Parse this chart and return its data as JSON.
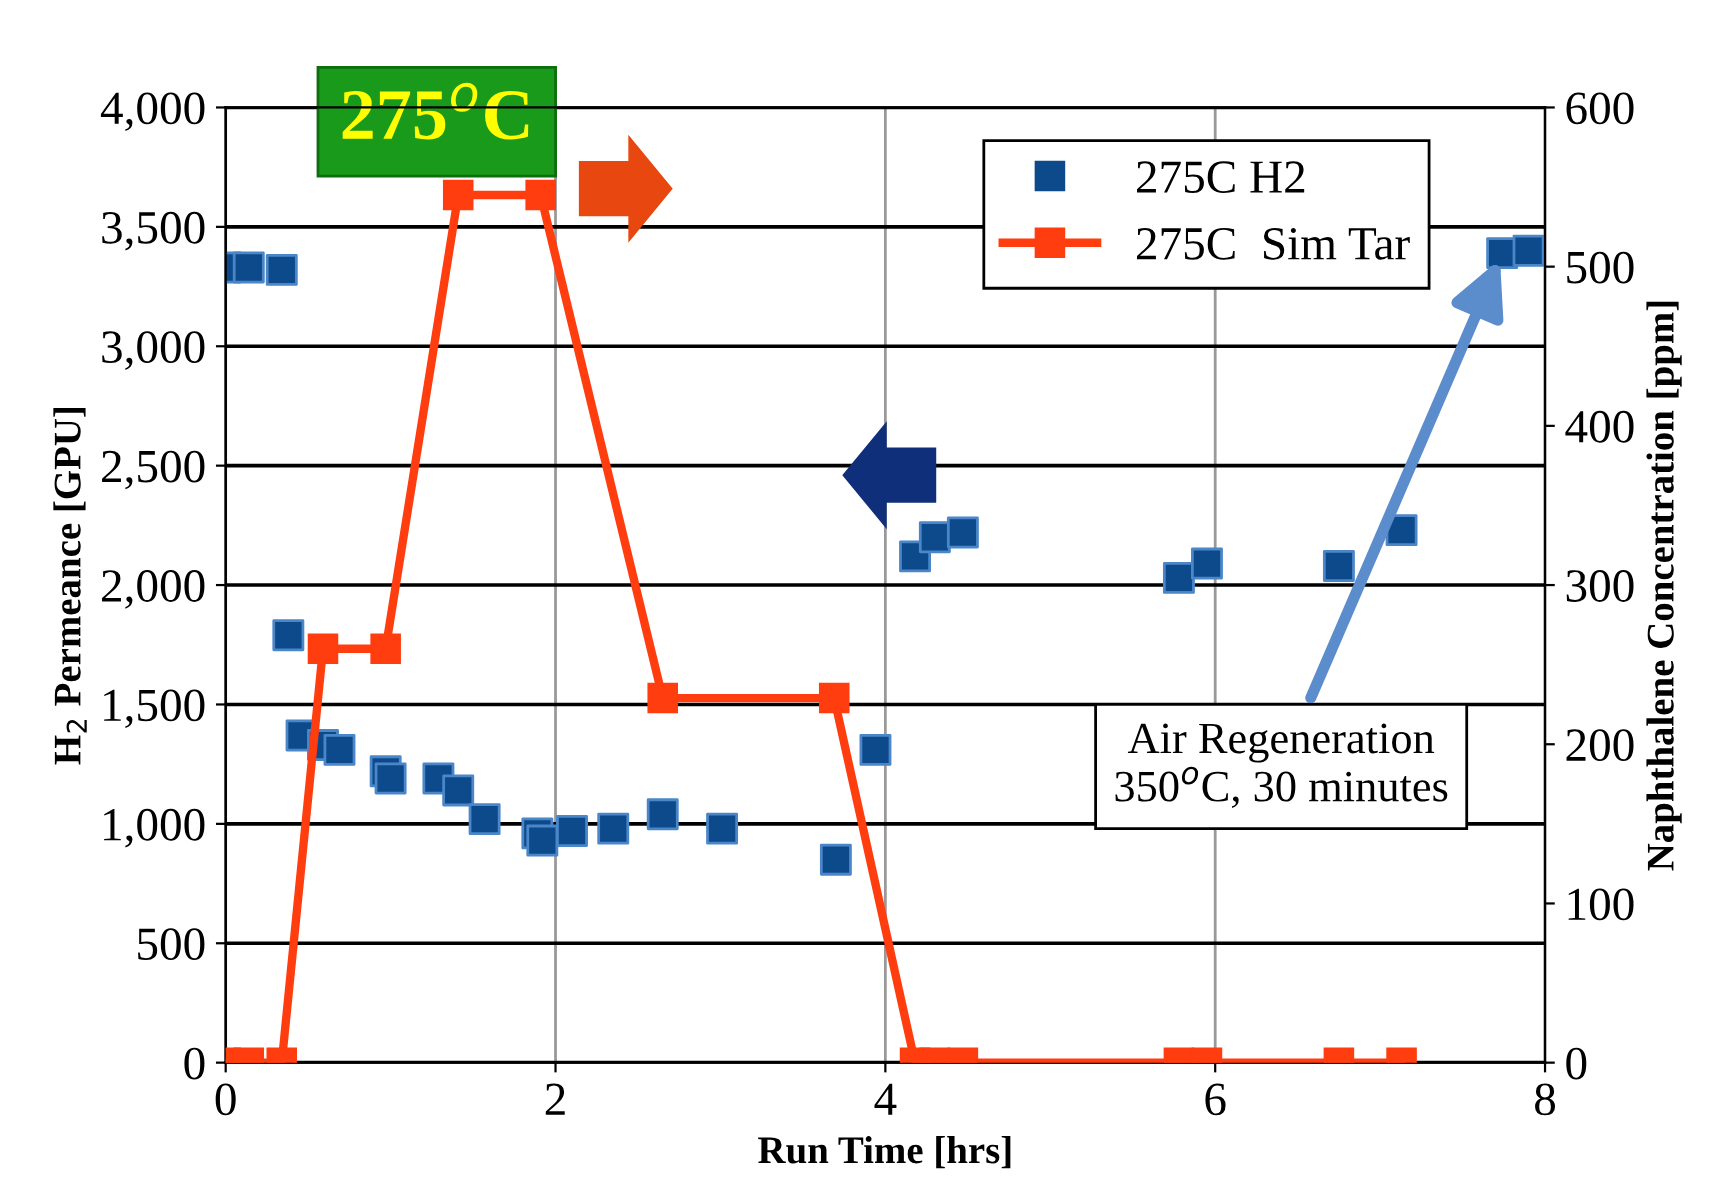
{
  "chart_data": {
    "type": "scatter",
    "xlabel": "Run Time [hrs]",
    "ylabel": "H$_{2}$ Permeance [GPU]",
    "y2label": "Naphthalene Concentration [ppm]",
    "xlim": [
      0,
      8
    ],
    "xticks": [
      0,
      2,
      4,
      6,
      8
    ],
    "ylim": [
      0,
      4000
    ],
    "yticks": [
      0,
      {
        "value": 500,
        "label": "500"
      },
      {
        "value": 1000,
        "label": "1,000"
      },
      {
        "value": 1500,
        "label": "1,500"
      },
      {
        "value": 2000,
        "label": "2,000"
      },
      {
        "value": 2500,
        "label": "2,500"
      },
      {
        "value": 3000,
        "label": "3,000"
      },
      {
        "value": 3500,
        "label": "3,500"
      },
      {
        "value": 4000,
        "label": "4,000"
      }
    ],
    "y2lim": [
      0,
      600
    ],
    "y2ticks": [
      0,
      100,
      200,
      300,
      400,
      500,
      600
    ],
    "grid": true,
    "legend": "top right",
    "marker": "square",
    "annotations": [
      "275$^{o}$C",
      {
        "text": "Air Regeneration\n350$^{o}$C, 30 minutes",
        "x": 7.74,
        "y": 3386
      }
    ],
    "series": [
      {
        "name": "275C H2",
        "color": "#0d4a8c",
        "x": [
          0,
          0.14,
          0.34,
          0.38,
          0.46,
          0.59,
          0.69,
          0.97,
          1.0,
          1.29,
          1.41,
          1.57,
          1.89,
          1.92,
          2.1,
          2.35,
          2.65,
          3.01,
          3.7,
          3.94,
          4.18,
          4.3,
          4.47,
          5.78,
          5.95,
          6.75,
          7.13,
          7.74,
          7.9
        ],
        "values": [
          3330,
          3330,
          3320,
          1790,
          1370,
          1330,
          1310,
          1220,
          1190,
          1190,
          1140,
          1020,
          960,
          930,
          970,
          980,
          1040,
          980,
          850,
          1310,
          2120,
          2200,
          2220,
          2030,
          2090,
          2080,
          2230,
          3390,
          3400
        ]
      },
      {
        "name": "275C  Sim Tar",
        "type": "line",
        "axis": "y2",
        "color": "#ff3d0f",
        "x": [
          0,
          0.14,
          0.34,
          0.59,
          0.97,
          1.41,
          1.91,
          2.65,
          3.69,
          4.18,
          4.3,
          4.47,
          5.78,
          5.95,
          6.75,
          7.13
        ],
        "values": [
          0,
          0,
          0,
          260,
          260,
          545,
          545,
          229,
          229,
          0,
          0,
          0,
          0,
          0,
          0,
          0
        ]
      }
    ]
  }
}
